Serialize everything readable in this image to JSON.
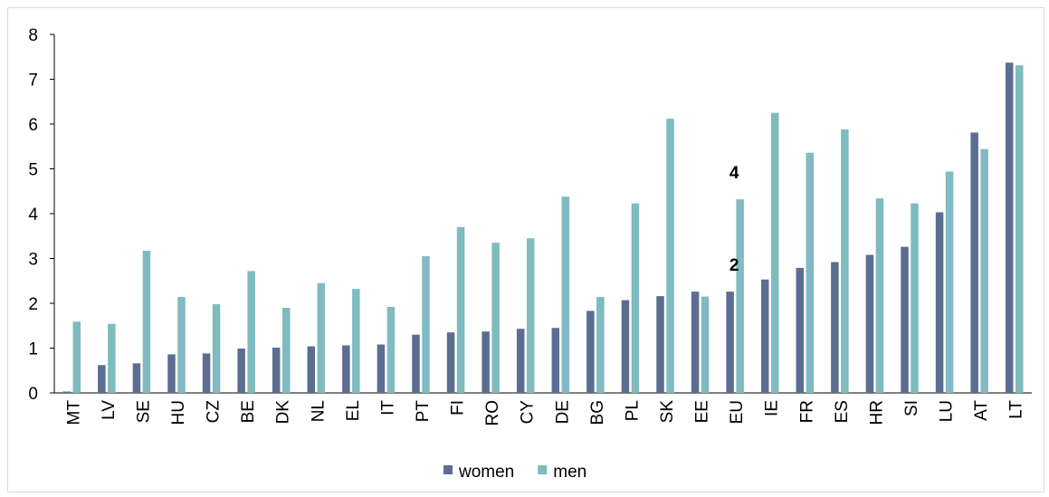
{
  "chart_data": {
    "type": "bar",
    "categories": [
      "MT",
      "LV",
      "SE",
      "HU",
      "CZ",
      "BE",
      "DK",
      "NL",
      "EL",
      "IT",
      "PT",
      "FI",
      "RO",
      "CY",
      "DE",
      "BG",
      "PL",
      "SK",
      "EE",
      "EU",
      "IE",
      "FR",
      "ES",
      "HR",
      "SI",
      "LU",
      "AT",
      "LT"
    ],
    "series": [
      {
        "name": "women",
        "color": "#5b6e91",
        "values": [
          0.03,
          0.62,
          0.66,
          0.86,
          0.88,
          0.99,
          1.01,
          1.04,
          1.06,
          1.08,
          1.3,
          1.35,
          1.37,
          1.43,
          1.45,
          1.83,
          2.07,
          2.16,
          2.26,
          2.26,
          2.53,
          2.79,
          2.92,
          3.08,
          3.26,
          4.03,
          5.81,
          7.37
        ]
      },
      {
        "name": "men",
        "color": "#7fbbc0",
        "values": [
          1.59,
          1.54,
          3.17,
          2.14,
          1.98,
          2.72,
          1.9,
          2.45,
          2.32,
          1.92,
          3.05,
          3.7,
          3.35,
          3.45,
          4.38,
          2.14,
          4.23,
          6.12,
          2.15,
          4.32,
          6.25,
          5.36,
          5.88,
          4.34,
          4.23,
          4.94,
          5.44,
          7.31
        ]
      }
    ],
    "annotations": [
      {
        "text": "4",
        "category": "EU",
        "value": 4.32
      },
      {
        "text": "2",
        "category": "EU",
        "value": 2.26
      }
    ],
    "ylim": [
      0,
      8
    ],
    "yticks": [
      "0",
      "1",
      "2",
      "3",
      "4",
      "5",
      "6",
      "7",
      "8"
    ],
    "title": "",
    "xlabel": "",
    "ylabel": "",
    "grid": false,
    "legend_position": "bottom-center"
  }
}
